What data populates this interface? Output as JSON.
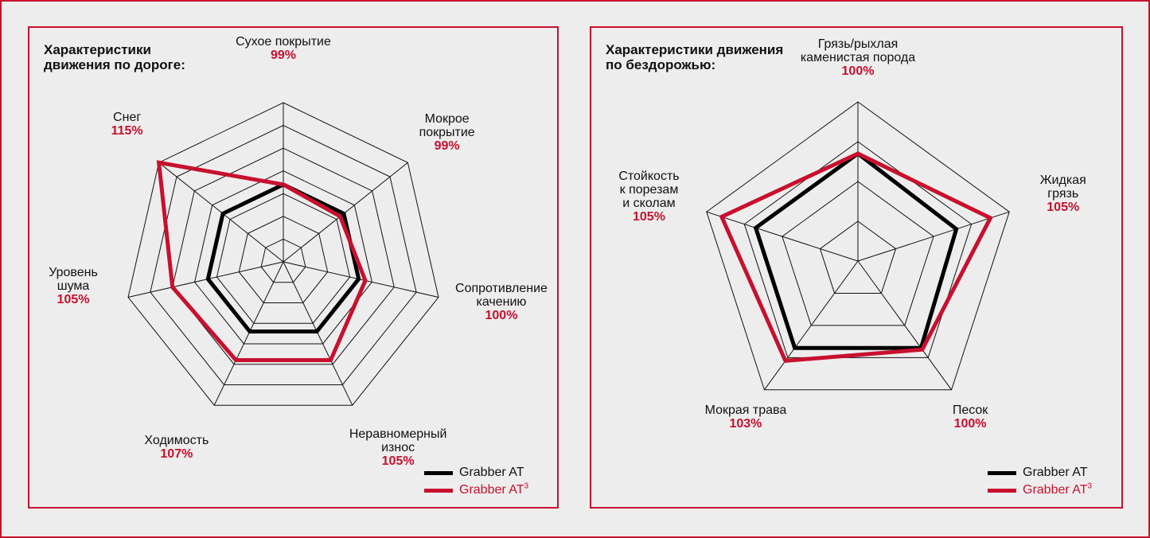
{
  "colors": {
    "accent": "#c8102e",
    "base": "#000000",
    "background": "#ededed"
  },
  "chart_data": [
    {
      "type": "radar",
      "title": "Характеристики\nдвижения по дороге:",
      "axes": [
        {
          "label": "Сухое покрытие",
          "value_label": "99%"
        },
        {
          "label": "Мокрое\nпокрытие",
          "value_label": "99%"
        },
        {
          "label": "Сопротивление\nкачению",
          "value_label": "100%"
        },
        {
          "label": "Неравномерный\nизнос",
          "value_label": "105%"
        },
        {
          "label": "Ходимость",
          "value_label": "107%"
        },
        {
          "label": "Уровень\nшума",
          "value_label": "105%"
        },
        {
          "label": "Снег",
          "value_label": "115%"
        }
      ],
      "rings": 7,
      "series": [
        {
          "name": "Grabber AT",
          "values": [
            3.4,
            3.4,
            3.4,
            3.4,
            3.4,
            3.4,
            3.4
          ],
          "color": "#000000"
        },
        {
          "name": "Grabber AT³",
          "values": [
            3.4,
            3.2,
            3.7,
            4.8,
            4.8,
            5.0,
            7.0
          ],
          "color": "#c8102e"
        }
      ]
    },
    {
      "type": "radar",
      "title": "Характеристики движения\nпо бездорожью:",
      "axes": [
        {
          "label": "Грязь/рыхлая\nкаменистая порода",
          "value_label": "100%"
        },
        {
          "label": "Жидкая\nгрязь",
          "value_label": "105%"
        },
        {
          "label": "Песок",
          "value_label": "100%"
        },
        {
          "label": "Мокрая трава",
          "value_label": "103%"
        },
        {
          "label": "Стойкость\nк порезам\nи сколам",
          "value_label": "105%"
        }
      ],
      "rings": 4,
      "series": [
        {
          "name": "Grabber AT",
          "values": [
            2.7,
            2.6,
            2.7,
            2.7,
            2.7
          ],
          "color": "#000000"
        },
        {
          "name": "Grabber AT³",
          "values": [
            2.7,
            3.5,
            2.75,
            3.1,
            3.6
          ],
          "color": "#c8102e"
        }
      ]
    }
  ],
  "legend": {
    "items": [
      {
        "label": "Grabber AT",
        "color": "black"
      },
      {
        "label": "Grabber AT",
        "sup": "3",
        "color": "red"
      }
    ]
  }
}
